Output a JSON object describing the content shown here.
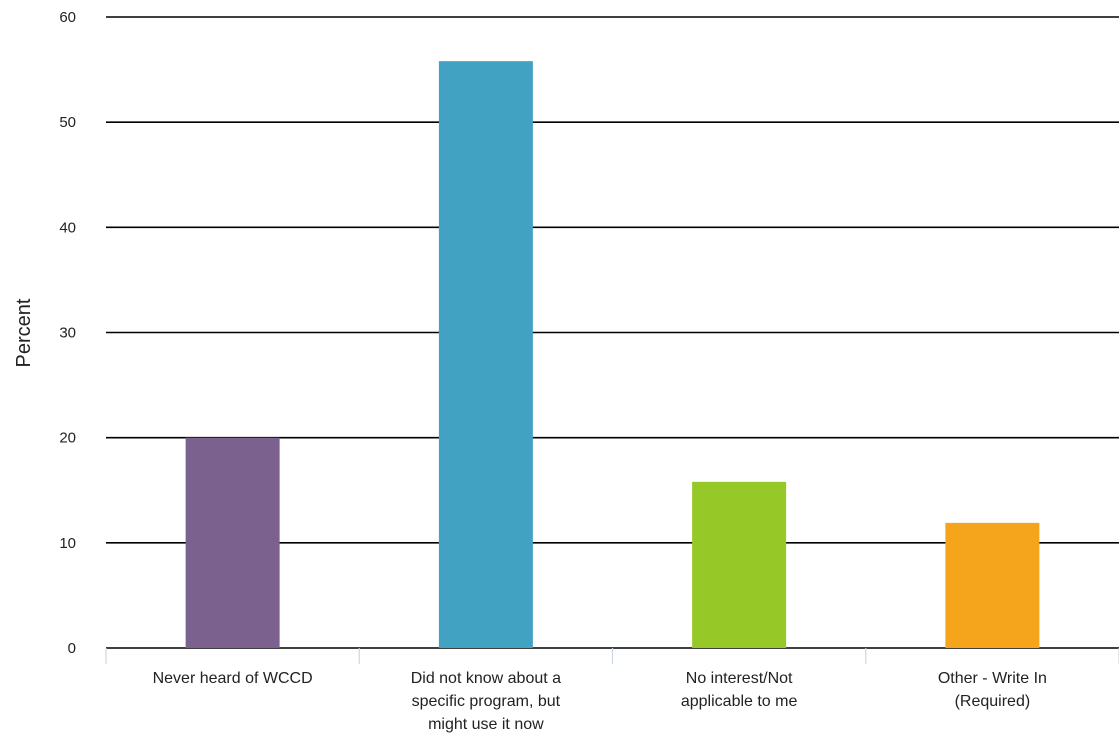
{
  "chart_data": {
    "type": "bar",
    "title": "",
    "xlabel": "",
    "ylabel": "Percent",
    "ylim": [
      0,
      60
    ],
    "yticks": [
      0,
      10,
      20,
      30,
      40,
      50,
      60
    ],
    "grid": true,
    "categories": [
      [
        "Never heard of WCCD"
      ],
      [
        "Did not know about a",
        "specific program, but",
        "might use it now"
      ],
      [
        "No interest/Not",
        "applicable to me"
      ],
      [
        "Other - Write In",
        "(Required)"
      ]
    ],
    "values": [
      20,
      55.8,
      15.8,
      11.9
    ],
    "colors": [
      "#7b618e",
      "#41a2c1",
      "#96c828",
      "#f4a51c"
    ]
  }
}
